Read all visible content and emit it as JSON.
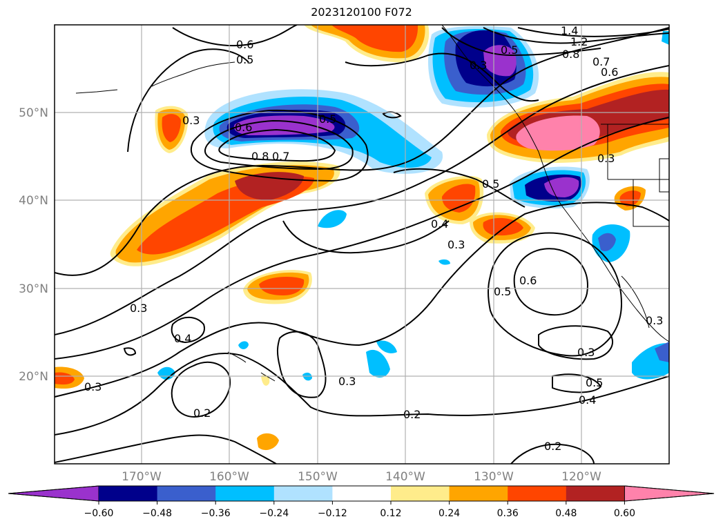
{
  "title": "2023120100 F072",
  "lon_labels": [
    "170°W",
    "160°W",
    "150°W",
    "140°W",
    "130°W",
    "120°W"
  ],
  "lat_labels": [
    "50°N",
    "40°N",
    "30°N",
    "20°N"
  ],
  "contour_labels": [
    "1.4",
    "1.2",
    "0.8",
    "0.7",
    "0.6",
    "0.6",
    "0.5",
    "0.5",
    "0.6",
    "0.5",
    "0.8",
    "0.7",
    "0.3",
    "0.3",
    "0.5",
    "0.4",
    "0.3",
    "0.6",
    "0.5",
    "0.3",
    "0.3",
    "0.4",
    "0.3",
    "0.3",
    "0.5",
    "0.4",
    "0.2",
    "0.2",
    "0.2",
    "0.3",
    "0.3"
  ],
  "colorbar": {
    "ticks": [
      "−0.60",
      "−0.48",
      "−0.36",
      "−0.24",
      "−0.12",
      "0.12",
      "0.24",
      "0.36",
      "0.48",
      "0.60"
    ],
    "colors": [
      "#9a32cd",
      "#00008b",
      "#3a5fcd",
      "#00bfff",
      "#b0e2ff",
      "#ffffff",
      "#ffec8b",
      "#ffa500",
      "#ff4500",
      "#b22222",
      "#ff82ab"
    ]
  }
}
